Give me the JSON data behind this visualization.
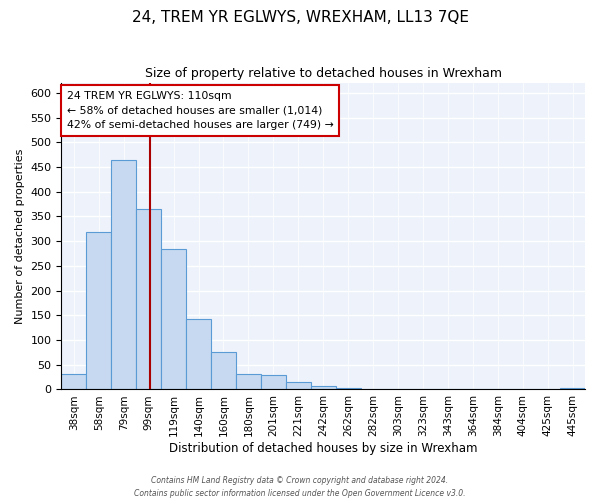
{
  "title": "24, TREM YR EGLWYS, WREXHAM, LL13 7QE",
  "subtitle": "Size of property relative to detached houses in Wrexham",
  "xlabel": "Distribution of detached houses by size in Wrexham",
  "ylabel": "Number of detached properties",
  "bar_labels": [
    "38sqm",
    "58sqm",
    "79sqm",
    "99sqm",
    "119sqm",
    "140sqm",
    "160sqm",
    "180sqm",
    "201sqm",
    "221sqm",
    "242sqm",
    "262sqm",
    "282sqm",
    "303sqm",
    "323sqm",
    "343sqm",
    "364sqm",
    "384sqm",
    "404sqm",
    "425sqm",
    "445sqm"
  ],
  "bar_values": [
    32,
    318,
    465,
    365,
    285,
    142,
    75,
    32,
    29,
    16,
    7,
    3,
    1,
    1,
    0,
    0,
    0,
    0,
    0,
    0,
    2
  ],
  "bar_color": "#c6d9f0",
  "bar_edge_color": "#5b9bd5",
  "vline_color": "#aa0000",
  "annotation_title": "24 TREM YR EGLWYS: 110sqm",
  "annotation_line1": "← 58% of detached houses are smaller (1,014)",
  "annotation_line2": "42% of semi-detached houses are larger (749) →",
  "annotation_box_edge": "#cc0000",
  "ylim": [
    0,
    620
  ],
  "yticks": [
    0,
    50,
    100,
    150,
    200,
    250,
    300,
    350,
    400,
    450,
    500,
    550,
    600
  ],
  "footer_line1": "Contains HM Land Registry data © Crown copyright and database right 2024.",
  "footer_line2": "Contains public sector information licensed under the Open Government Licence v3.0.",
  "background_color": "#ffffff",
  "plot_bg_color": "#edf2fb"
}
